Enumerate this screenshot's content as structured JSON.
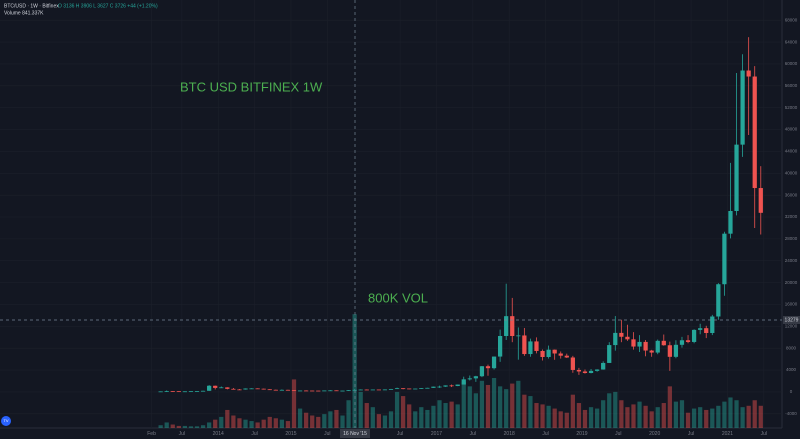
{
  "header": {
    "symbol": "BTC/USD · 1W · Bitfinex",
    "ohlc": "O 3136 H 3906 L 3627 C 3726 +44 (+1.20%)",
    "volume": "Volume 841.337K"
  },
  "crosshair": {
    "date_label": "16 Nov '15",
    "price_label": "13279"
  },
  "chart_data": {
    "type": "candlestick",
    "annotations": [
      "BTC USD BITFINEX 1W",
      "800K VOL"
    ],
    "up_color": "#26a69a",
    "down_color": "#ef5350",
    "grid": true,
    "xlim": [
      "2011-01",
      "2021-10"
    ],
    "ylim": [
      -6600,
      71700
    ],
    "yticks": [
      -4000,
      0,
      4000,
      8000,
      12000,
      16000,
      20000,
      24000,
      28000,
      32000,
      36000,
      40000,
      44000,
      48000,
      52000,
      56000,
      60000,
      64000,
      68000
    ],
    "volume_lim": [
      0,
      850
    ],
    "xticks": [
      {
        "value": "2013-02",
        "label": "Feb"
      },
      {
        "value": "2013-07",
        "label": "Jul"
      },
      {
        "value": "2014-01",
        "label": "2014"
      },
      {
        "value": "2014-07",
        "label": "Jul"
      },
      {
        "value": "2015-01",
        "label": "2015"
      },
      {
        "value": "2015-07",
        "label": "Jul"
      },
      {
        "value": "2016-07",
        "label": "Jul"
      },
      {
        "value": "2017-01",
        "label": "2017"
      },
      {
        "value": "2017-07",
        "label": "Jul"
      },
      {
        "value": "2018-01",
        "label": "2018"
      },
      {
        "value": "2018-07",
        "label": "Jul"
      },
      {
        "value": "2019-01",
        "label": "2019"
      },
      {
        "value": "2019-07",
        "label": "Jul"
      },
      {
        "value": "2020-01",
        "label": "2020"
      },
      {
        "value": "2020-07",
        "label": "Jul"
      },
      {
        "value": "2021-01",
        "label": "2021"
      },
      {
        "value": "2021-07",
        "label": "Jul"
      }
    ],
    "x": [
      "2013-03",
      "2013-04",
      "2013-05",
      "2013-06",
      "2013-07",
      "2013-08",
      "2013-09",
      "2013-10",
      "2013-11",
      "2013-12",
      "2014-01",
      "2014-02",
      "2014-03",
      "2014-04",
      "2014-05",
      "2014-06",
      "2014-07",
      "2014-08",
      "2014-09",
      "2014-10",
      "2014-11",
      "2014-12",
      "2015-01",
      "2015-02",
      "2015-03",
      "2015-04",
      "2015-05",
      "2015-06",
      "2015-07",
      "2015-08",
      "2015-09",
      "2015-10",
      "2015-11",
      "2015-12",
      "2016-01",
      "2016-02",
      "2016-03",
      "2016-04",
      "2016-05",
      "2016-06",
      "2016-07",
      "2016-08",
      "2016-09",
      "2016-10",
      "2016-11",
      "2016-12",
      "2017-01",
      "2017-02",
      "2017-03",
      "2017-04",
      "2017-05",
      "2017-06",
      "2017-07",
      "2017-08",
      "2017-09",
      "2017-10",
      "2017-11",
      "2017-12",
      "2018-01",
      "2018-02",
      "2018-03",
      "2018-04",
      "2018-05",
      "2018-06",
      "2018-07",
      "2018-08",
      "2018-09",
      "2018-10",
      "2018-11",
      "2018-12",
      "2019-01",
      "2019-02",
      "2019-03",
      "2019-04",
      "2019-05",
      "2019-06",
      "2019-07",
      "2019-08",
      "2019-09",
      "2019-10",
      "2019-11",
      "2019-12",
      "2020-01",
      "2020-02",
      "2020-03",
      "2020-04",
      "2020-05",
      "2020-06",
      "2020-07",
      "2020-08",
      "2020-09",
      "2020-10",
      "2020-11",
      "2020-12",
      "2021-01",
      "2021-02",
      "2021-03",
      "2021-04",
      "2021-05",
      "2021-06"
    ],
    "open": [
      34,
      93,
      139,
      129,
      97,
      106,
      129,
      133,
      204,
      1129,
      732,
      830,
      560,
      450,
      445,
      625,
      640,
      585,
      480,
      390,
      338,
      380,
      320,
      220,
      255,
      245,
      235,
      230,
      262,
      285,
      230,
      236,
      313,
      378,
      430,
      368,
      437,
      416,
      448,
      530,
      672,
      625,
      575,
      608,
      700,
      745,
      965,
      970,
      1190,
      1080,
      1350,
      2300,
      2480,
      2870,
      4700,
      4340,
      6470,
      10230,
      13860,
      10230,
      10330,
      6930,
      9240,
      7490,
      6390,
      7730,
      7030,
      6630,
      6300,
      4020,
      3740,
      3460,
      3850,
      4100,
      5300,
      8570,
      10800,
      10090,
      9620,
      8300,
      9150,
      7570,
      7200,
      9350,
      8540,
      6420,
      8620,
      9450,
      9140,
      11350,
      11660,
      10780,
      13800,
      19700,
      28950,
      33100,
      45240,
      58800,
      57700,
      37300
    ],
    "high": [
      95,
      266,
      140,
      130,
      112,
      129,
      145,
      214,
      1242,
      1163,
      1000,
      860,
      720,
      540,
      650,
      680,
      660,
      600,
      500,
      415,
      460,
      390,
      320,
      265,
      300,
      260,
      250,
      265,
      320,
      290,
      245,
      320,
      495,
      465,
      460,
      445,
      440,
      468,
      550,
      780,
      700,
      630,
      615,
      720,
      755,
      975,
      1150,
      1200,
      1350,
      1350,
      2790,
      3000,
      2950,
      4750,
      5000,
      6470,
      11400,
      19800,
      17200,
      11800,
      11700,
      9750,
      9990,
      7760,
      8480,
      7760,
      7400,
      7000,
      6600,
      4400,
      4100,
      4200,
      4150,
      5600,
      9100,
      13880,
      13200,
      12300,
      10950,
      10400,
      9500,
      7700,
      9580,
      10500,
      9200,
      9460,
      10080,
      10400,
      11450,
      12470,
      12100,
      14100,
      19900,
      29300,
      41900,
      58350,
      61780,
      64900,
      59600,
      41300
    ],
    "low": [
      33,
      50,
      80,
      88,
      65,
      100,
      120,
      110,
      200,
      450,
      720,
      470,
      440,
      350,
      420,
      560,
      565,
      430,
      360,
      290,
      320,
      300,
      160,
      210,
      235,
      215,
      225,
      220,
      255,
      200,
      225,
      235,
      300,
      345,
      350,
      365,
      395,
      412,
      438,
      525,
      480,
      480,
      570,
      605,
      680,
      740,
      750,
      920,
      890,
      1060,
      1350,
      2100,
      1840,
      2700,
      2950,
      4100,
      5500,
      9500,
      9100,
      5900,
      6600,
      6430,
      7050,
      5750,
      6100,
      5880,
      6100,
      6200,
      3500,
      3130,
      3350,
      3400,
      3700,
      4070,
      5300,
      7550,
      9100,
      9350,
      7730,
      7300,
      6520,
      6430,
      6900,
      8450,
      3850,
      6150,
      8100,
      8900,
      8900,
      10550,
      9850,
      10400,
      13200,
      17600,
      28100,
      32300,
      43000,
      47000,
      30000,
      28800
    ],
    "close": [
      93,
      139,
      129,
      97,
      106,
      129,
      133,
      204,
      1129,
      732,
      830,
      560,
      450,
      445,
      625,
      640,
      585,
      480,
      390,
      338,
      380,
      320,
      220,
      255,
      245,
      235,
      230,
      262,
      285,
      230,
      236,
      313,
      378,
      430,
      368,
      437,
      416,
      448,
      530,
      672,
      625,
      575,
      608,
      700,
      745,
      965,
      970,
      1190,
      1080,
      1350,
      2300,
      2480,
      2870,
      4700,
      4340,
      6470,
      10230,
      13860,
      10230,
      10330,
      6930,
      9240,
      7490,
      6390,
      7730,
      7030,
      6630,
      6300,
      4020,
      3740,
      3460,
      3850,
      4100,
      5300,
      8570,
      10800,
      10090,
      9620,
      8300,
      9150,
      7570,
      7200,
      9350,
      8540,
      6420,
      8620,
      9450,
      9140,
      11350,
      11660,
      10780,
      13800,
      19700,
      28950,
      33100,
      45240,
      58800,
      57700,
      37300,
      32766
    ],
    "volume": [
      20,
      40,
      25,
      15,
      15,
      12,
      12,
      20,
      40,
      60,
      80,
      130,
      90,
      70,
      60,
      50,
      40,
      60,
      80,
      70,
      60,
      50,
      350,
      140,
      110,
      90,
      80,
      100,
      120,
      130,
      90,
      200,
      820,
      260,
      180,
      150,
      100,
      90,
      120,
      260,
      230,
      170,
      120,
      150,
      130,
      160,
      200,
      180,
      190,
      170,
      330,
      300,
      250,
      340,
      310,
      360,
      300,
      280,
      320,
      340,
      240,
      230,
      180,
      170,
      160,
      140,
      120,
      110,
      240,
      180,
      130,
      150,
      140,
      200,
      250,
      260,
      200,
      150,
      170,
      190,
      160,
      120,
      150,
      180,
      300,
      190,
      200,
      110,
      140,
      150,
      130,
      140,
      160,
      190,
      220,
      200,
      150,
      160,
      200,
      160
    ]
  }
}
